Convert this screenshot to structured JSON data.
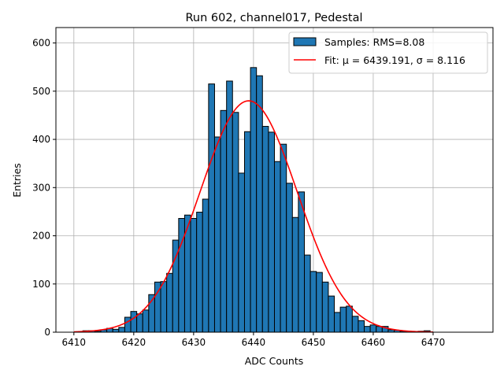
{
  "chart_data": {
    "type": "bar",
    "title": "Run 602, channel017, Pedestal",
    "xlabel": "ADC Counts",
    "ylabel": "Entries",
    "xlim": [
      6407,
      6480
    ],
    "ylim": [
      0,
      632
    ],
    "xticks": [
      "6410",
      "6420",
      "6430",
      "6440",
      "6450",
      "6460",
      "6470"
    ],
    "yticks": [
      "0",
      "100",
      "200",
      "300",
      "400",
      "500",
      "600"
    ],
    "grid": true,
    "legend_position": "top-right",
    "bin_width": 1,
    "bins": {
      "centers": [
        6412,
        6413,
        6414,
        6415,
        6416,
        6417,
        6418,
        6419,
        6420,
        6421,
        6422,
        6423,
        6424,
        6425,
        6426,
        6427,
        6428,
        6429,
        6430,
        6431,
        6432,
        6433,
        6434,
        6435,
        6436,
        6437,
        6438,
        6439,
        6440,
        6441,
        6442,
        6443,
        6444,
        6445,
        6446,
        6447,
        6448,
        6449,
        6450,
        6451,
        6452,
        6453,
        6454,
        6455,
        6456,
        6457,
        6458,
        6459,
        6460,
        6461,
        6462,
        6463,
        6464,
        6465,
        6466,
        6467,
        6468,
        6469
      ],
      "counts": [
        3,
        3,
        2,
        5,
        8,
        6,
        10,
        31,
        43,
        38,
        46,
        78,
        104,
        105,
        122,
        191,
        236,
        243,
        236,
        249,
        276,
        515,
        405,
        460,
        521,
        456,
        330,
        416,
        549,
        532,
        427,
        415,
        354,
        390,
        309,
        238,
        291,
        160,
        126,
        124,
        104,
        75,
        41,
        52,
        54,
        33,
        24,
        12,
        15,
        12,
        12,
        5,
        4,
        2,
        1,
        1,
        2,
        3
      ]
    },
    "series": [
      {
        "name": "Samples: RMS=8.08",
        "kind": "histogram",
        "color": "#1f77b4"
      },
      {
        "name": "Fit: μ = 6439.191, σ = 8.116",
        "kind": "gaussian",
        "color": "#ff0000",
        "mu": 6439.191,
        "sigma": 8.116,
        "amplitude": 480,
        "x_range": [
          6410,
          6470
        ]
      }
    ]
  }
}
